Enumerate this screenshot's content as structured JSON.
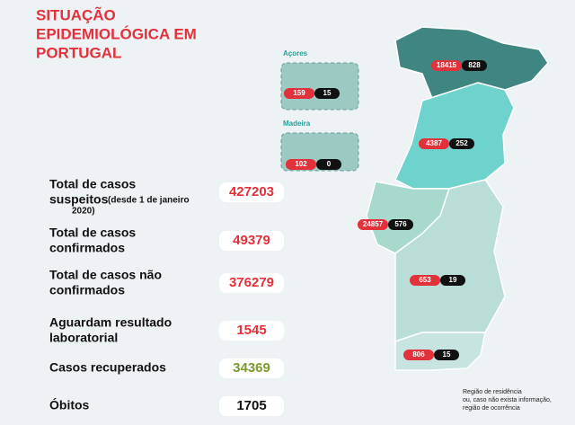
{
  "title": [
    "SITUAÇÃO",
    "EPIDEMIOLÓGICA EM",
    "PORTUGAL"
  ],
  "stats": [
    {
      "label": [
        "Total de casos",
        "suspeitos"
      ],
      "note": [
        "(desde 1 de janeiro",
        "2020)"
      ],
      "value": 427203
    },
    {
      "label": [
        "Total de casos",
        "confirmados"
      ],
      "value": 49379
    },
    {
      "label": [
        "Total de casos não",
        "confirmados"
      ],
      "value": 376279
    },
    {
      "label": [
        "Aguardam resultado",
        "laboratorial"
      ],
      "value": 1545
    },
    {
      "label": [
        "Casos recuperados"
      ],
      "value": 34369
    },
    {
      "label": [
        "Óbitos"
      ],
      "value": 1705
    }
  ],
  "islands": [
    {
      "name": "Açores",
      "cases": 159,
      "deaths": 15
    },
    {
      "name": "Madeira",
      "cases": 102,
      "deaths": 0
    }
  ],
  "regions": [
    {
      "cases": 18415,
      "deaths": 828
    },
    {
      "cases": 4387,
      "deaths": 252
    },
    {
      "cases": 24857,
      "deaths": 576
    },
    {
      "cases": 653,
      "deaths": 19
    },
    {
      "cases": 806,
      "deaths": 15
    }
  ],
  "legend_note": [
    "Região de residência",
    "ou, caso não exista informação,",
    "região de ocorrência"
  ]
}
